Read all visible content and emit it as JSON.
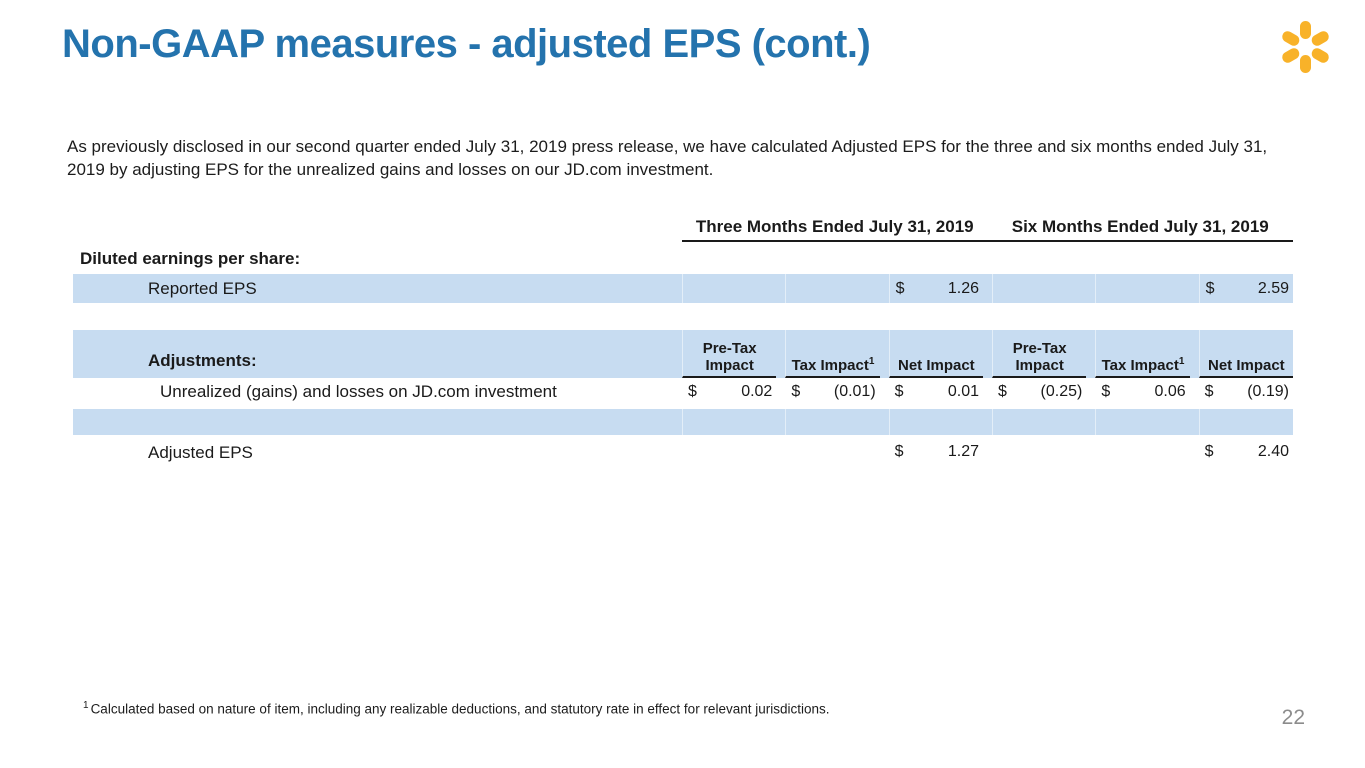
{
  "slide": {
    "title": "Non-GAAP measures - adjusted EPS (cont.)",
    "intro": "As previously disclosed in our second quarter ended July 31, 2019 press release, we have calculated Adjusted EPS for the three and six months ended July 31, 2019 by adjusting EPS for the unrealized gains and losses on our JD.com investment.",
    "footnote_marker": "1",
    "footnote": "Calculated based on nature of item, including any realizable deductions, and statutory rate in effect for relevant jurisdictions.",
    "page_number": "22"
  },
  "logo": {
    "name": "walmart-spark",
    "color": "#F8B229"
  },
  "colors": {
    "title_blue": "#2473AD",
    "row_highlight_blue": "#C7DCF1",
    "text": "#1A1A1A",
    "page_number_gray": "#8C8C8C"
  },
  "table": {
    "period_headers": [
      "Three Months Ended July 31, 2019",
      "Six Months Ended July 31, 2019"
    ],
    "sub_headers": [
      {
        "text": "Pre-Tax Impact",
        "sup": ""
      },
      {
        "text": "Tax Impact",
        "sup": "1"
      },
      {
        "text": "Net Impact",
        "sup": ""
      },
      {
        "text": "Pre-Tax Impact",
        "sup": ""
      },
      {
        "text": "Tax Impact",
        "sup": "1"
      },
      {
        "text": "Net Impact",
        "sup": ""
      }
    ],
    "rows": [
      {
        "label": "Diluted earnings per share:"
      },
      {
        "label": "Reported EPS",
        "cells": [
          null,
          null,
          {
            "d": "$",
            "v": "1.26"
          },
          null,
          null,
          {
            "d": "$",
            "v": "2.59"
          }
        ]
      },
      {
        "label": "Adjustments:"
      },
      {
        "label": "Unrealized (gains) and losses on JD.com investment",
        "cells": [
          {
            "d": "$",
            "v": "0.02"
          },
          {
            "d": "$",
            "v": "(0.01)"
          },
          {
            "d": "$",
            "v": "0.01"
          },
          {
            "d": "$",
            "v": "(0.25)"
          },
          {
            "d": "$",
            "v": "0.06"
          },
          {
            "d": "$",
            "v": "(0.19)"
          }
        ]
      },
      {
        "label": ""
      },
      {
        "label": "Adjusted EPS",
        "cells": [
          null,
          null,
          {
            "d": "$",
            "v": "1.27"
          },
          null,
          null,
          {
            "d": "$",
            "v": "2.40"
          }
        ]
      }
    ]
  }
}
